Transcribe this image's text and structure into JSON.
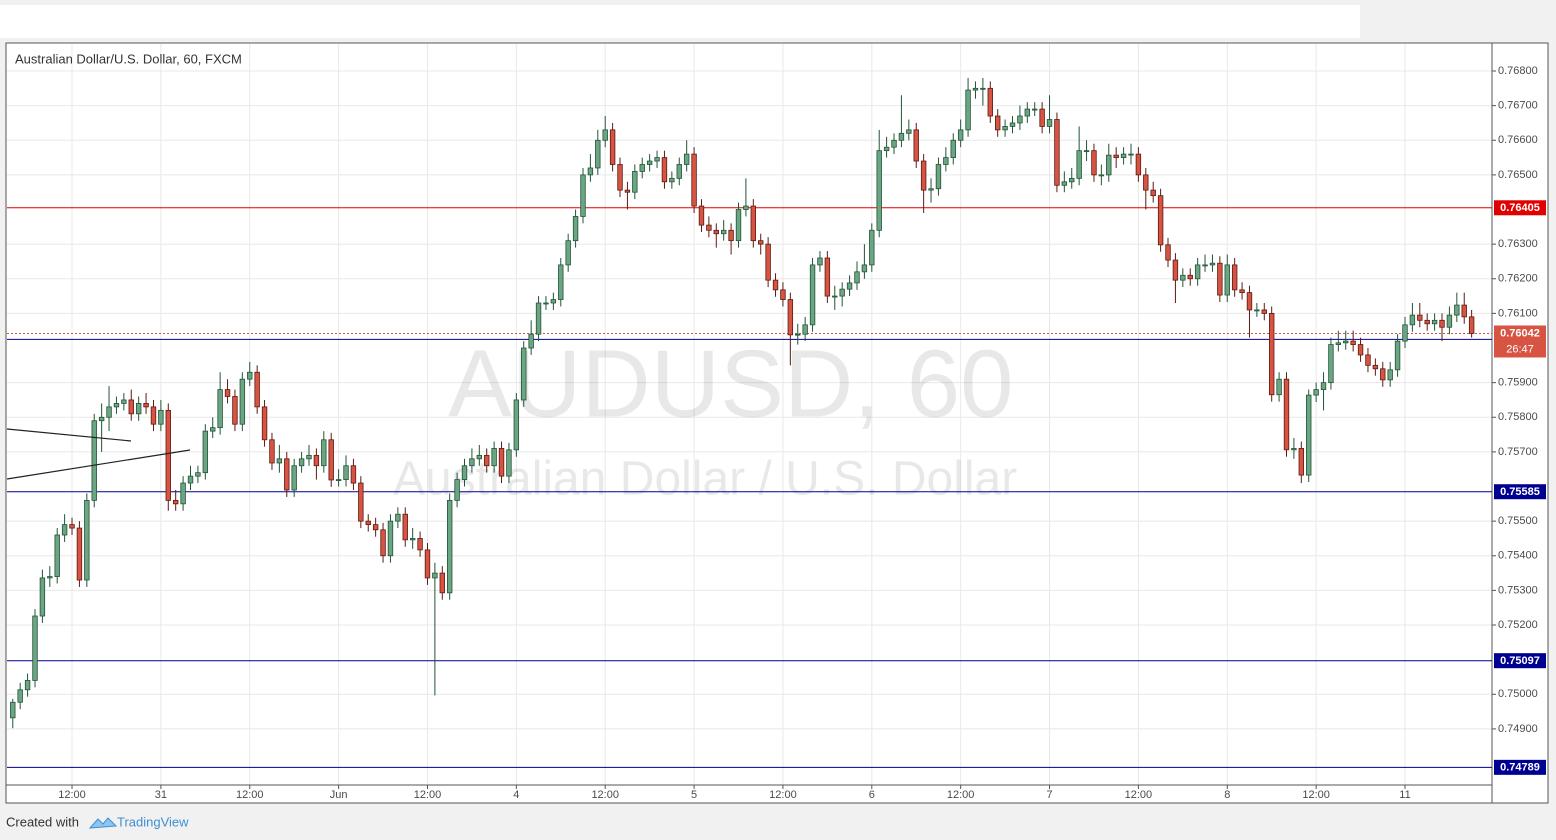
{
  "chart_data": {
    "type": "candlestick",
    "title": "Australian Dollar/U.S. Dollar, 60, FXCM",
    "watermark": "AUDUSD, 60",
    "watermark_subtitle": "Australian Dollar / U.S. Dollar",
    "footer": {
      "text": "Created with",
      "brand": "TradingView"
    },
    "up_color": "#6ba583",
    "down_color": "#d75442",
    "xlim": [
      -0.78,
      199.75
    ],
    "ylim": [
      0.74738,
      0.76878
    ],
    "grid": true,
    "xticks": [
      {
        "value": 8,
        "label": "12:00"
      },
      {
        "value": 20,
        "label": "31"
      },
      {
        "value": 32,
        "label": "12:00"
      },
      {
        "value": 44,
        "label": "Jun"
      },
      {
        "value": 56,
        "label": "12:00"
      },
      {
        "value": 68,
        "label": "4"
      },
      {
        "value": 80,
        "label": "12:00"
      },
      {
        "value": 92,
        "label": "5"
      },
      {
        "value": 104,
        "label": "12:00"
      },
      {
        "value": 116,
        "label": "6"
      },
      {
        "value": 128,
        "label": "12:00"
      },
      {
        "value": 140,
        "label": "7"
      },
      {
        "value": 152,
        "label": "12:00"
      },
      {
        "value": 164,
        "label": "8"
      },
      {
        "value": 176,
        "label": "12:00"
      },
      {
        "value": 188,
        "label": "11"
      }
    ],
    "yticks": [
      {
        "value": 0.749,
        "label": "0.74900"
      },
      {
        "value": 0.75,
        "label": "0.75000"
      },
      {
        "value": 0.752,
        "label": "0.75200"
      },
      {
        "value": 0.753,
        "label": "0.75300"
      },
      {
        "value": 0.754,
        "label": "0.75400"
      },
      {
        "value": 0.755,
        "label": "0.75500"
      },
      {
        "value": 0.757,
        "label": "0.75700"
      },
      {
        "value": 0.758,
        "label": "0.75800"
      },
      {
        "value": 0.759,
        "label": "0.75900"
      },
      {
        "value": 0.761,
        "label": "0.76100"
      },
      {
        "value": 0.762,
        "label": "0.76200"
      },
      {
        "value": 0.763,
        "label": "0.76300"
      },
      {
        "value": 0.765,
        "label": "0.76500"
      },
      {
        "value": 0.766,
        "label": "0.76600"
      },
      {
        "value": 0.767,
        "label": "0.76700"
      },
      {
        "value": 0.768,
        "label": "0.76800"
      }
    ],
    "levels": [
      {
        "value": 0.76405,
        "color": "#e00000"
      },
      {
        "value": 0.76025,
        "color": "#000090"
      },
      {
        "value": 0.75585,
        "color": "#000090"
      },
      {
        "value": 0.75097,
        "color": "#000090"
      },
      {
        "value": 0.74789,
        "color": "#000090"
      }
    ],
    "last": {
      "value": 0.76042,
      "countdown": "26:47"
    },
    "candles": [
      [
        0.74932,
        0.74987,
        0.74902,
        0.74977
      ],
      [
        0.74977,
        0.75033,
        0.74957,
        0.75013
      ],
      [
        0.75013,
        0.7506,
        0.74993,
        0.7504
      ],
      [
        0.7504,
        0.75246,
        0.7502,
        0.75226
      ],
      [
        0.75226,
        0.7536,
        0.75206,
        0.75336
      ],
      [
        0.75336,
        0.7537,
        0.7531,
        0.7534
      ],
      [
        0.7534,
        0.7548,
        0.7532,
        0.7546
      ],
      [
        0.7546,
        0.7552,
        0.7544,
        0.7549
      ],
      [
        0.7549,
        0.7551,
        0.7546,
        0.7548
      ],
      [
        0.7548,
        0.755,
        0.7531,
        0.7533
      ],
      [
        0.7533,
        0.7558,
        0.7531,
        0.7556
      ],
      [
        0.7556,
        0.7581,
        0.7554,
        0.7579
      ],
      [
        0.7579,
        0.7584,
        0.757,
        0.758
      ],
      [
        0.758,
        0.7589,
        0.7576,
        0.7583
      ],
      [
        0.7583,
        0.7586,
        0.7581,
        0.7584
      ],
      [
        0.7584,
        0.7587,
        0.7582,
        0.7585
      ],
      [
        0.7585,
        0.7588,
        0.7579,
        0.7581
      ],
      [
        0.7581,
        0.7586,
        0.7579,
        0.7584
      ],
      [
        0.7584,
        0.7587,
        0.7581,
        0.7583
      ],
      [
        0.7583,
        0.7585,
        0.7576,
        0.7578
      ],
      [
        0.7578,
        0.7585,
        0.7576,
        0.7582
      ],
      [
        0.7582,
        0.7584,
        0.7553,
        0.7556
      ],
      [
        0.7556,
        0.7559,
        0.7553,
        0.7555
      ],
      [
        0.7555,
        0.7563,
        0.7553,
        0.7561
      ],
      [
        0.7561,
        0.7566,
        0.7559,
        0.7563
      ],
      [
        0.7563,
        0.7566,
        0.7561,
        0.7564
      ],
      [
        0.7564,
        0.7578,
        0.7562,
        0.7576
      ],
      [
        0.7576,
        0.758,
        0.7574,
        0.7577
      ],
      [
        0.7577,
        0.7593,
        0.7575,
        0.7588
      ],
      [
        0.7588,
        0.7591,
        0.7584,
        0.7586
      ],
      [
        0.7586,
        0.7588,
        0.7576,
        0.7578
      ],
      [
        0.7578,
        0.7593,
        0.7576,
        0.7591
      ],
      [
        0.7591,
        0.7596,
        0.7589,
        0.7593
      ],
      [
        0.7593,
        0.7595,
        0.7581,
        0.7583
      ],
      [
        0.7583,
        0.7585,
        0.75715,
        0.75735
      ],
      [
        0.75735,
        0.75755,
        0.75648,
        0.75668
      ],
      [
        0.75668,
        0.7572,
        0.7564,
        0.7568
      ],
      [
        0.7568,
        0.757,
        0.7557,
        0.7559
      ],
      [
        0.7559,
        0.7568,
        0.7557,
        0.7566
      ],
      [
        0.7566,
        0.757,
        0.7564,
        0.7568
      ],
      [
        0.7568,
        0.7572,
        0.7566,
        0.7569
      ],
      [
        0.7569,
        0.7571,
        0.7562,
        0.7566
      ],
      [
        0.7566,
        0.7576,
        0.7564,
        0.75735
      ],
      [
        0.75735,
        0.75755,
        0.75599,
        0.75619
      ],
      [
        0.75619,
        0.7565,
        0.756,
        0.7562
      ],
      [
        0.7562,
        0.7569,
        0.756,
        0.7566
      ],
      [
        0.7566,
        0.7568,
        0.7559,
        0.7561
      ],
      [
        0.7561,
        0.7563,
        0.7548,
        0.755
      ],
      [
        0.755,
        0.7552,
        0.7547,
        0.7549
      ],
      [
        0.7549,
        0.7551,
        0.75455,
        0.75475
      ],
      [
        0.75475,
        0.75495,
        0.7538,
        0.754
      ],
      [
        0.754,
        0.7552,
        0.7538,
        0.755
      ],
      [
        0.755,
        0.7554,
        0.7548,
        0.7552
      ],
      [
        0.7552,
        0.7554,
        0.75426,
        0.75446
      ],
      [
        0.75446,
        0.7548,
        0.7542,
        0.7545
      ],
      [
        0.7545,
        0.7547,
        0.75397,
        0.75417
      ],
      [
        0.75417,
        0.75437,
        0.75316,
        0.75336
      ],
      [
        0.75336,
        0.7538,
        0.74997,
        0.7535
      ],
      [
        0.7535,
        0.7537,
        0.75273,
        0.75293
      ],
      [
        0.75293,
        0.7558,
        0.75273,
        0.7556
      ],
      [
        0.7556,
        0.7564,
        0.7554,
        0.7562
      ],
      [
        0.7562,
        0.7568,
        0.756,
        0.7566
      ],
      [
        0.7566,
        0.7571,
        0.7564,
        0.7568
      ],
      [
        0.7568,
        0.7572,
        0.7566,
        0.7569
      ],
      [
        0.7569,
        0.7571,
        0.7564,
        0.7566
      ],
      [
        0.7566,
        0.7573,
        0.7564,
        0.7571
      ],
      [
        0.7571,
        0.7573,
        0.7561,
        0.7563
      ],
      [
        0.7563,
        0.75726,
        0.7561,
        0.75706
      ],
      [
        0.75706,
        0.7587,
        0.75686,
        0.7585
      ],
      [
        0.7585,
        0.7602,
        0.7583,
        0.76
      ],
      [
        0.76,
        0.7608,
        0.7598,
        0.7604
      ],
      [
        0.7604,
        0.7615,
        0.7602,
        0.7613
      ],
      [
        0.7613,
        0.7615,
        0.7611,
        0.7613
      ],
      [
        0.7613,
        0.7616,
        0.7611,
        0.7614
      ],
      [
        0.7614,
        0.7626,
        0.7612,
        0.7624
      ],
      [
        0.7624,
        0.7633,
        0.7622,
        0.7631
      ],
      [
        0.7631,
        0.764,
        0.7629,
        0.7638
      ],
      [
        0.7638,
        0.7652,
        0.7636,
        0.765
      ],
      [
        0.765,
        0.7656,
        0.7648,
        0.7652
      ],
      [
        0.7652,
        0.7663,
        0.765,
        0.766
      ],
      [
        0.766,
        0.7667,
        0.7658,
        0.7663
      ],
      [
        0.7663,
        0.7665,
        0.7651,
        0.7653
      ],
      [
        0.7653,
        0.7655,
        0.76436,
        0.76456
      ],
      [
        0.76456,
        0.7648,
        0.764,
        0.7645
      ],
      [
        0.7645,
        0.7653,
        0.7643,
        0.7651
      ],
      [
        0.7651,
        0.7655,
        0.7649,
        0.7653
      ],
      [
        0.7653,
        0.7656,
        0.7651,
        0.7654
      ],
      [
        0.7654,
        0.7657,
        0.7652,
        0.7655
      ],
      [
        0.7655,
        0.7657,
        0.7646,
        0.7648
      ],
      [
        0.7648,
        0.7651,
        0.7646,
        0.7649
      ],
      [
        0.7649,
        0.7655,
        0.7647,
        0.7653
      ],
      [
        0.7653,
        0.766,
        0.7651,
        0.7656
      ],
      [
        0.7656,
        0.7658,
        0.7639,
        0.7641
      ],
      [
        0.7641,
        0.7643,
        0.76335,
        0.76355
      ],
      [
        0.76355,
        0.7638,
        0.7632,
        0.7634
      ],
      [
        0.7634,
        0.7636,
        0.7629,
        0.7633
      ],
      [
        0.7633,
        0.7637,
        0.7631,
        0.7634
      ],
      [
        0.7634,
        0.7636,
        0.7627,
        0.7631
      ],
      [
        0.7631,
        0.7642,
        0.7629,
        0.764
      ],
      [
        0.764,
        0.7649,
        0.7638,
        0.7641
      ],
      [
        0.7641,
        0.7643,
        0.7629,
        0.7631
      ],
      [
        0.7631,
        0.7633,
        0.7627,
        0.763
      ],
      [
        0.763,
        0.7632,
        0.76176,
        0.76196
      ],
      [
        0.76196,
        0.76216,
        0.76148,
        0.76168
      ],
      [
        0.76168,
        0.7619,
        0.7612,
        0.7614
      ],
      [
        0.7614,
        0.7616,
        0.7595,
        0.76038
      ],
      [
        0.76038,
        0.7607,
        0.7601,
        0.7604
      ],
      [
        0.7604,
        0.7609,
        0.7602,
        0.76067
      ],
      [
        0.76067,
        0.7626,
        0.76047,
        0.7624
      ],
      [
        0.7624,
        0.7628,
        0.7622,
        0.7626
      ],
      [
        0.7626,
        0.7628,
        0.7613,
        0.7615
      ],
      [
        0.7615,
        0.7618,
        0.7611,
        0.7615
      ],
      [
        0.7615,
        0.7619,
        0.7612,
        0.7617
      ],
      [
        0.7617,
        0.7621,
        0.7615,
        0.76188
      ],
      [
        0.76188,
        0.7625,
        0.76168,
        0.7622
      ],
      [
        0.7622,
        0.763,
        0.762,
        0.7624
      ],
      [
        0.7624,
        0.7636,
        0.7622,
        0.7634
      ],
      [
        0.7634,
        0.7663,
        0.7632,
        0.7657
      ],
      [
        0.7657,
        0.7661,
        0.7655,
        0.7658
      ],
      [
        0.7658,
        0.7662,
        0.7656,
        0.766
      ],
      [
        0.766,
        0.7673,
        0.7658,
        0.7662
      ],
      [
        0.7662,
        0.7666,
        0.766,
        0.7663
      ],
      [
        0.7663,
        0.7665,
        0.7652,
        0.7654
      ],
      [
        0.7654,
        0.7656,
        0.7639,
        0.76456
      ],
      [
        0.76456,
        0.7649,
        0.7642,
        0.7646
      ],
      [
        0.7646,
        0.7655,
        0.7644,
        0.7653
      ],
      [
        0.7653,
        0.7658,
        0.7651,
        0.7655
      ],
      [
        0.7655,
        0.7662,
        0.7653,
        0.766
      ],
      [
        0.766,
        0.7666,
        0.7658,
        0.7663
      ],
      [
        0.7663,
        0.7678,
        0.7661,
        0.76745
      ],
      [
        0.76745,
        0.7677,
        0.7672,
        0.7675
      ],
      [
        0.7675,
        0.7678,
        0.767,
        0.7675
      ],
      [
        0.7675,
        0.7677,
        0.7665,
        0.7667
      ],
      [
        0.7667,
        0.7669,
        0.7661,
        0.7663
      ],
      [
        0.7663,
        0.7666,
        0.7661,
        0.7664
      ],
      [
        0.7664,
        0.7667,
        0.7662,
        0.7665
      ],
      [
        0.7665,
        0.767,
        0.7663,
        0.7667
      ],
      [
        0.7667,
        0.7671,
        0.7665,
        0.7669
      ],
      [
        0.7669,
        0.7671,
        0.7667,
        0.7669
      ],
      [
        0.7669,
        0.7671,
        0.7662,
        0.7664
      ],
      [
        0.7664,
        0.7673,
        0.7662,
        0.7666
      ],
      [
        0.7666,
        0.7668,
        0.7645,
        0.7647
      ],
      [
        0.7647,
        0.7651,
        0.7645,
        0.7648
      ],
      [
        0.7648,
        0.7652,
        0.7646,
        0.7649
      ],
      [
        0.7649,
        0.7664,
        0.7647,
        0.7657
      ],
      [
        0.7657,
        0.766,
        0.7654,
        0.7657
      ],
      [
        0.7657,
        0.7659,
        0.7648,
        0.765
      ],
      [
        0.765,
        0.7653,
        0.7647,
        0.765
      ],
      [
        0.765,
        0.7659,
        0.7648,
        0.76557
      ],
      [
        0.76557,
        0.7658,
        0.7652,
        0.7655
      ],
      [
        0.7655,
        0.7658,
        0.7653,
        0.7656
      ],
      [
        0.7656,
        0.7659,
        0.7653,
        0.7656
      ],
      [
        0.7656,
        0.7658,
        0.7648,
        0.765
      ],
      [
        0.765,
        0.7652,
        0.764,
        0.76456
      ],
      [
        0.76456,
        0.7648,
        0.7642,
        0.7644
      ],
      [
        0.7644,
        0.7646,
        0.76278,
        0.76298
      ],
      [
        0.76298,
        0.76318,
        0.76234,
        0.76254
      ],
      [
        0.76254,
        0.76274,
        0.7613,
        0.76196
      ],
      [
        0.76196,
        0.7623,
        0.76176,
        0.7621
      ],
      [
        0.7621,
        0.7623,
        0.7618,
        0.762
      ],
      [
        0.762,
        0.7626,
        0.7618,
        0.7624
      ],
      [
        0.7624,
        0.7627,
        0.7622,
        0.7624
      ],
      [
        0.7624,
        0.7627,
        0.7622,
        0.76245
      ],
      [
        0.76245,
        0.76265,
        0.76133,
        0.76153
      ],
      [
        0.76153,
        0.7627,
        0.76133,
        0.7624
      ],
      [
        0.7624,
        0.7626,
        0.76148,
        0.76168
      ],
      [
        0.76168,
        0.7619,
        0.7614,
        0.7616
      ],
      [
        0.7616,
        0.7618,
        0.7603,
        0.7611
      ],
      [
        0.7611,
        0.7613,
        0.7609,
        0.7611
      ],
      [
        0.7611,
        0.7613,
        0.7608,
        0.761
      ],
      [
        0.761,
        0.7612,
        0.75845,
        0.75865
      ],
      [
        0.75865,
        0.7593,
        0.75845,
        0.7591
      ],
      [
        0.7591,
        0.7593,
        0.75686,
        0.75706
      ],
      [
        0.75706,
        0.7574,
        0.7568,
        0.7571
      ],
      [
        0.7571,
        0.7573,
        0.7561,
        0.75633
      ],
      [
        0.75633,
        0.7588,
        0.75613,
        0.75864
      ],
      [
        0.75864,
        0.759,
        0.75844,
        0.7588
      ],
      [
        0.7588,
        0.7593,
        0.7582,
        0.759
      ],
      [
        0.759,
        0.7603,
        0.7588,
        0.7601
      ],
      [
        0.7601,
        0.7605,
        0.7599,
        0.76015
      ],
      [
        0.76015,
        0.7605,
        0.75995,
        0.7602
      ],
      [
        0.7602,
        0.7605,
        0.7599,
        0.7601
      ],
      [
        0.7601,
        0.7603,
        0.7596,
        0.7598
      ],
      [
        0.7598,
        0.76,
        0.7593,
        0.7595
      ],
      [
        0.7595,
        0.7597,
        0.7592,
        0.7594
      ],
      [
        0.7594,
        0.7596,
        0.75888,
        0.75908
      ],
      [
        0.75908,
        0.7596,
        0.75888,
        0.75937
      ],
      [
        0.75937,
        0.7604,
        0.75917,
        0.7602
      ],
      [
        0.7602,
        0.7609,
        0.76,
        0.76067
      ],
      [
        0.76067,
        0.7613,
        0.76047,
        0.76095
      ],
      [
        0.76095,
        0.7613,
        0.7606,
        0.7608
      ],
      [
        0.7608,
        0.761,
        0.7605,
        0.7607
      ],
      [
        0.7607,
        0.761,
        0.7605,
        0.7608
      ],
      [
        0.7608,
        0.761,
        0.7602,
        0.7606
      ],
      [
        0.7606,
        0.7612,
        0.7604,
        0.76095
      ],
      [
        0.76095,
        0.7616,
        0.76075,
        0.76124
      ],
      [
        0.76124,
        0.7616,
        0.7607,
        0.7609
      ],
      [
        0.7609,
        0.7611,
        0.7603,
        0.76042
      ]
    ]
  }
}
